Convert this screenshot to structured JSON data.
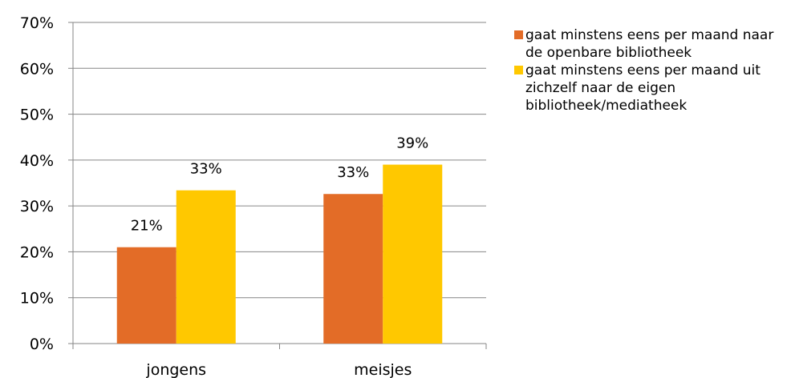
{
  "chart_data": {
    "type": "bar",
    "categories": [
      "jongens",
      "meisjes"
    ],
    "series": [
      {
        "name": "gaat minstens eens per maand naar de openbare bibliotheek",
        "color": "#E36C27",
        "values": [
          21,
          32.6
        ],
        "labels": [
          "21%",
          "33%"
        ]
      },
      {
        "name": "gaat minstens eens per maand uit zichzelf naar de eigen bibliotheek/mediatheek",
        "color": "#FFC800",
        "values": [
          33.4,
          39
        ],
        "labels": [
          "33%",
          "39%"
        ]
      }
    ],
    "ylim": [
      0,
      70
    ],
    "yticks": [
      "0%",
      "10%",
      "20%",
      "30%",
      "40%",
      "50%",
      "60%",
      "70%"
    ],
    "grid": true,
    "legend_position": "right"
  }
}
